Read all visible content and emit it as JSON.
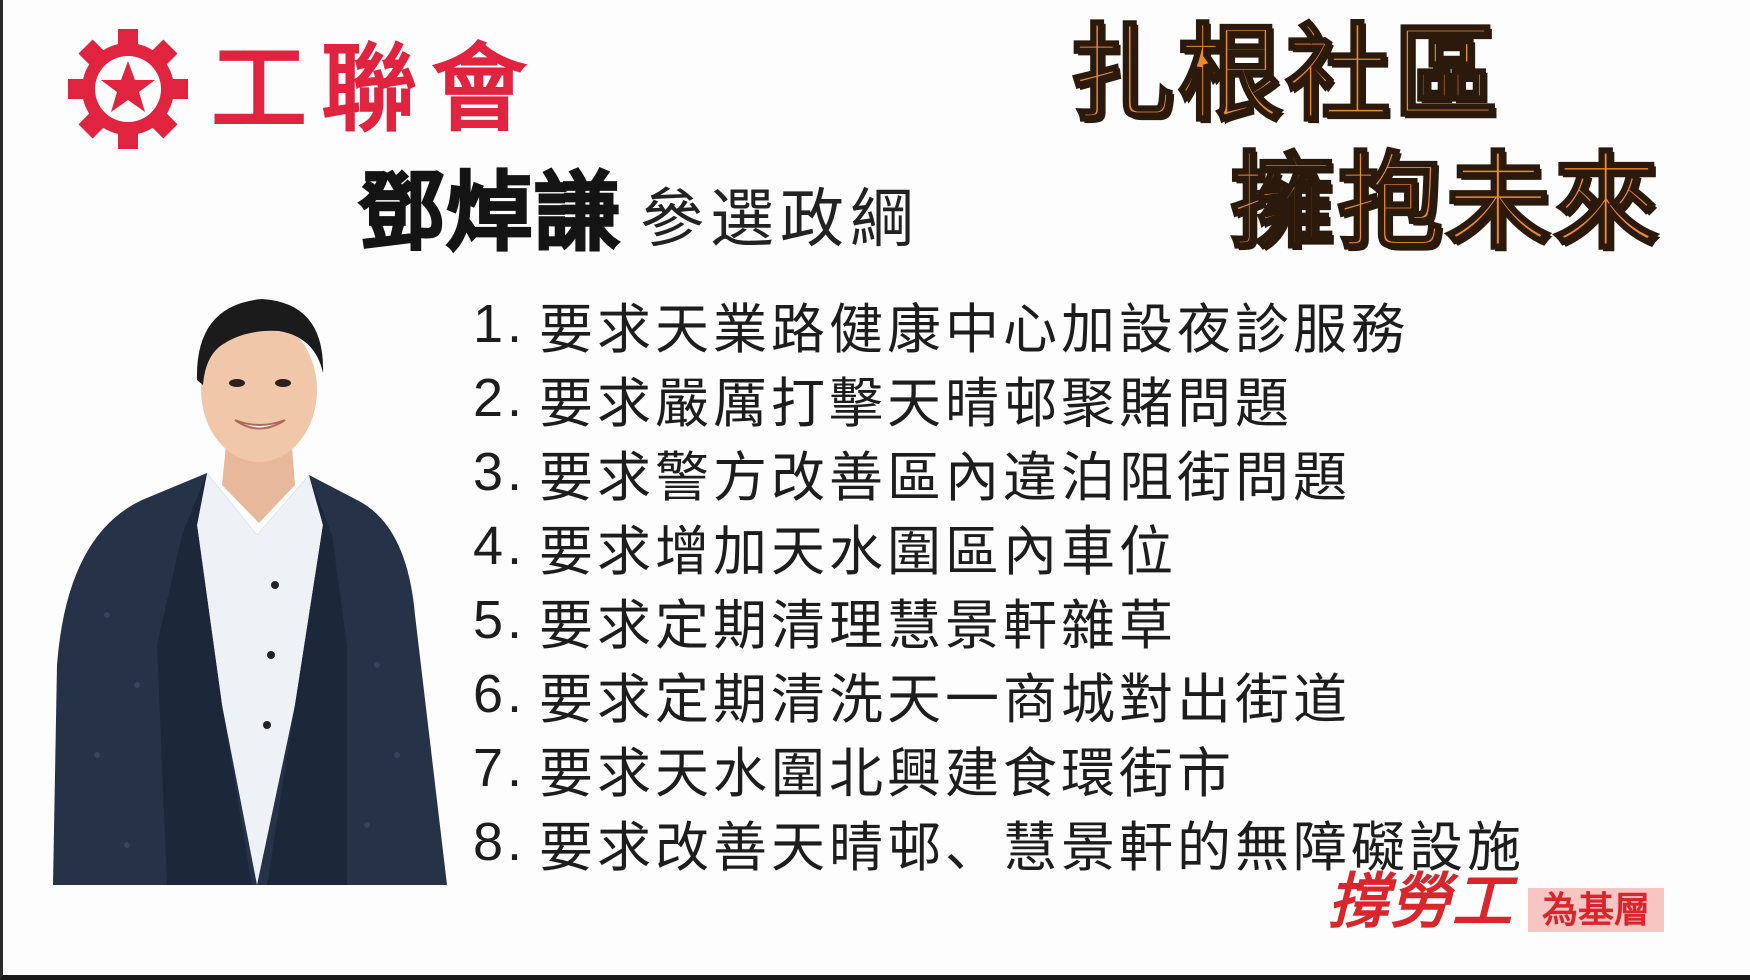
{
  "logo": {
    "text": "工聯會",
    "emblem": "red-gear-star-icon",
    "color": "#e0243f"
  },
  "slogan": {
    "line1": "扎根社區",
    "line2": "擁抱未來",
    "color": "#e98a2c"
  },
  "headline": {
    "name": "鄧焯謙",
    "subtitle": "參選政綱"
  },
  "platform": [
    {
      "num": "1.",
      "text": "要求天業路健康中心加設夜診服務"
    },
    {
      "num": "2.",
      "text": "要求嚴厲打擊天晴邨聚賭問題"
    },
    {
      "num": "3.",
      "text": "要求警方改善區內違泊阻街問題"
    },
    {
      "num": "4.",
      "text": "要求增加天水圍區內車位"
    },
    {
      "num": "5.",
      "text": "要求定期清理慧景軒雜草"
    },
    {
      "num": "6.",
      "text": "要求定期清洗天一商城對出街道"
    },
    {
      "num": "7.",
      "text": "要求天水圍北興建食環街市"
    },
    {
      "num": "8.",
      "text": "要求改善天晴邨、慧景軒的無障礙設施"
    }
  ],
  "motto": {
    "main": "撐勞工",
    "sub": "為基層",
    "color": "#d8262c"
  }
}
